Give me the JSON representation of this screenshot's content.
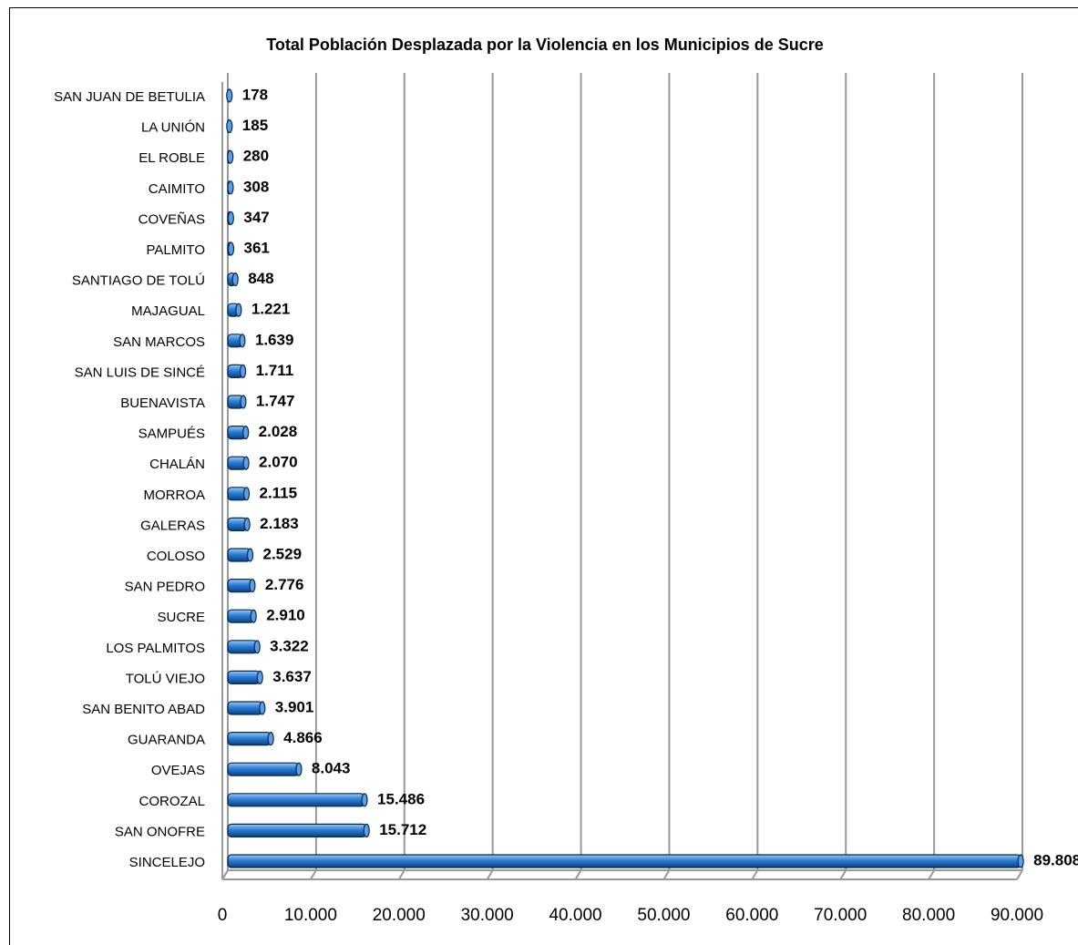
{
  "chart_data": {
    "type": "bar",
    "orientation": "horizontal",
    "title": "Total Población Desplazada por la Violencia en los Municipios de Sucre",
    "categories": [
      "SAN JUAN DE BETULIA",
      "LA UNIÓN",
      "EL ROBLE",
      "CAIMITO",
      "COVEÑAS",
      "PALMITO",
      "SANTIAGO DE TOLÚ",
      "MAJAGUAL",
      "SAN MARCOS",
      "SAN LUIS DE SINCÉ",
      "BUENAVISTA",
      "SAMPUÉS",
      "CHALÁN",
      "MORROA",
      "GALERAS",
      "COLOSO",
      "SAN PEDRO",
      "SUCRE",
      "LOS PALMITOS",
      "TOLÚ VIEJO",
      "SAN BENITO ABAD",
      "GUARANDA",
      "OVEJAS",
      "COROZAL",
      "SAN ONOFRE",
      "SINCELEJO"
    ],
    "values": [
      178,
      185,
      280,
      308,
      347,
      361,
      848,
      1221,
      1639,
      1711,
      1747,
      2028,
      2070,
      2115,
      2183,
      2529,
      2776,
      2910,
      3322,
      3637,
      3901,
      4866,
      8043,
      15486,
      15712,
      89808
    ],
    "value_labels": [
      "178",
      "185",
      "280",
      "308",
      "347",
      "361",
      "848",
      "1.221",
      "1.639",
      "1.711",
      "1.747",
      "2.028",
      "2.070",
      "2.115",
      "2.183",
      "2.529",
      "2.776",
      "2.910",
      "3.322",
      "3.637",
      "3.901",
      "4.866",
      "8.043",
      "15.486",
      "15.712",
      "89.808"
    ],
    "color": "#1f6fc5",
    "xlim": [
      0,
      90000
    ],
    "xticks": [
      0,
      {
        "value": 10000,
        "label": "10.000"
      },
      {
        "value": 20000,
        "label": "20.000"
      },
      {
        "value": 30000,
        "label": "30.000"
      },
      {
        "value": 40000,
        "label": "40.000"
      },
      {
        "value": 50000,
        "label": "50.000"
      },
      {
        "value": 60000,
        "label": "60.000"
      },
      {
        "value": 70000,
        "label": "70.000"
      },
      {
        "value": 80000,
        "label": "80.000"
      },
      {
        "value": 90000,
        "label": "90.000"
      }
    ],
    "grid": true
  }
}
